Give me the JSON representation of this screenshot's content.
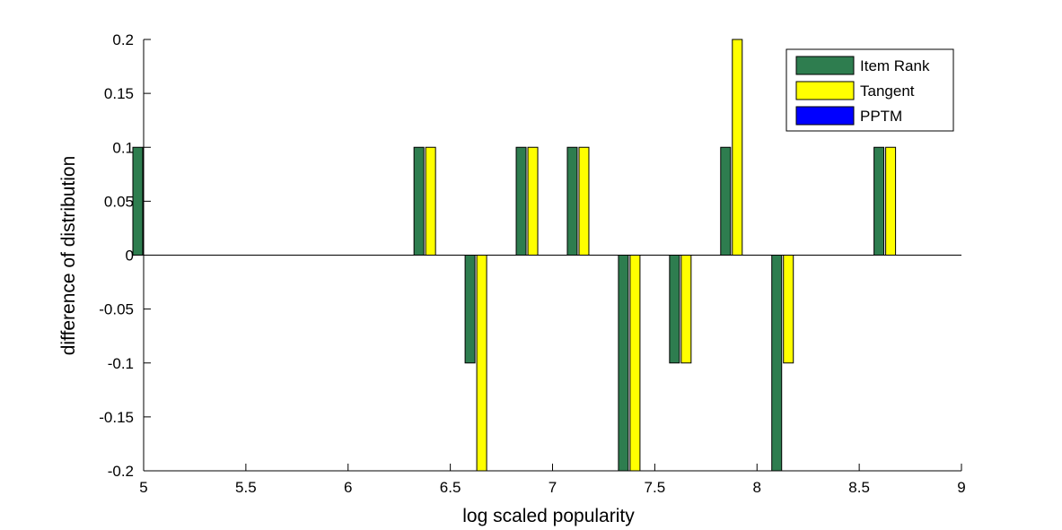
{
  "chart_data": {
    "type": "bar",
    "xlabel": "log scaled popularity",
    "ylabel": "difference of distribution",
    "xlim": [
      5,
      9
    ],
    "ylim": [
      -0.2,
      0.2
    ],
    "xticks": [
      "5",
      "5.5",
      "6",
      "6.5",
      "7",
      "7.5",
      "8",
      "8.5",
      "9"
    ],
    "yticks": [
      "-0.2",
      "-0.15",
      "-0.1",
      "-0.05",
      "0",
      "0.05",
      "0.1",
      "0.15",
      "0.2"
    ],
    "categories": [
      5.0,
      6.375,
      6.625,
      6.875,
      7.125,
      7.375,
      7.625,
      7.875,
      8.125,
      8.625
    ],
    "series": [
      {
        "name": "Item Rank",
        "color": "#2e7d4f",
        "values": [
          0.1,
          0.1,
          -0.1,
          0.1,
          0.1,
          -0.2,
          -0.1,
          0.1,
          -0.2,
          0.1
        ]
      },
      {
        "name": "Tangent",
        "color": "#ffff00",
        "values": [
          0.0,
          0.1,
          -0.2,
          0.1,
          0.1,
          -0.2,
          -0.1,
          0.2,
          -0.1,
          0.1
        ]
      },
      {
        "name": "PPTM",
        "color": "#0000ff",
        "values": [
          0,
          0,
          0,
          0,
          0,
          0,
          0,
          0,
          0,
          0
        ]
      }
    ],
    "legend_position": "top-right",
    "grid": false
  }
}
